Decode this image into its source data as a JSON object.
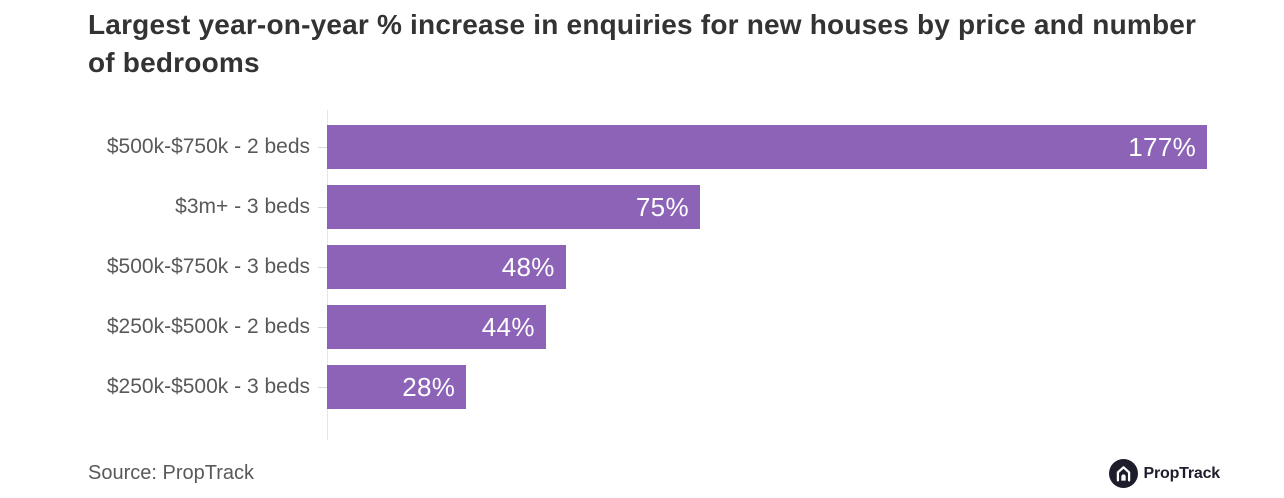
{
  "title": "Largest year-on-year % increase in enquiries for new houses by price and number of bedrooms",
  "source": "Source: PropTrack",
  "logo": {
    "icon": "house-icon",
    "text": "PropTrack"
  },
  "colors": {
    "bar": "#8c63b7",
    "title_text": "#333333",
    "label_text": "#595959",
    "value_text": "#ffffff",
    "axis_line": "#e7e7e7",
    "logo_dark": "#1d1d2b"
  },
  "chart_data": {
    "type": "bar",
    "orientation": "horizontal",
    "title": "Largest year-on-year % increase in enquiries for new houses by price and number of bedrooms",
    "categories": [
      "$500k-$750k - 2 beds",
      "$3m+ - 3 beds",
      "$500k-$750k - 3 beds",
      "$250k-$500k - 2 beds",
      "$250k-$500k - 3 beds"
    ],
    "values": [
      177,
      75,
      48,
      44,
      28
    ],
    "value_labels": [
      "177%",
      "75%",
      "48%",
      "44%",
      "28%"
    ],
    "xlabel": "",
    "ylabel": "",
    "xlim": [
      0,
      177
    ],
    "grid": false,
    "legend": false,
    "value_label_position": "inside-end"
  }
}
